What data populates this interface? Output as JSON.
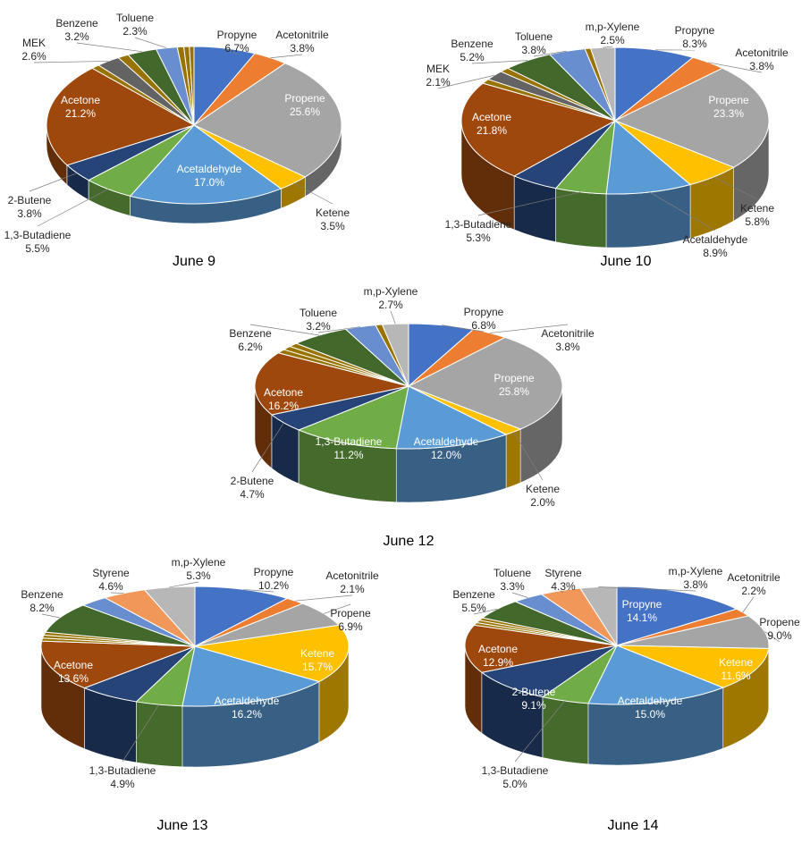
{
  "figure": {
    "colors": {
      "Propyne": "#4472C4",
      "Acetonitrile": "#ED7D31",
      "Propene": "#A5A5A5",
      "Ketene": "#FFC000",
      "Acetaldehyde": "#5B9BD5",
      "1,3-Butadiene": "#70AD47",
      "2-Butene": "#264478",
      "Acetone": "#9E480E",
      "MEK": "#636363",
      "Benzene": "#43682B",
      "Toluene": "#698ED0",
      "Styrene": "#F1975A",
      "m,p-Xylene": "#B7B7B7",
      "Other": "#997300"
    }
  },
  "chart_data": [
    {
      "type": "pie",
      "title": "June 9",
      "slices": [
        {
          "label": "Propyne",
          "value": 6.7,
          "text": "6.7%"
        },
        {
          "label": "Acetonitrile",
          "value": 3.8,
          "text": "3.8%"
        },
        {
          "label": "Propene",
          "value": 25.6,
          "text": "25.6%"
        },
        {
          "label": "Ketene",
          "value": 3.5,
          "text": "3.5%"
        },
        {
          "label": "Acetaldehyde",
          "value": 17.0,
          "text": "17.0%"
        },
        {
          "label": "1,3-Butadiene",
          "value": 5.5,
          "text": "5.5%"
        },
        {
          "label": "2-Butene",
          "value": 3.8,
          "text": "3.8%"
        },
        {
          "label": "Acetone",
          "value": 21.2,
          "text": "21.2%"
        },
        {
          "label": "Other",
          "value": 0.9,
          "text": ""
        },
        {
          "label": "MEK",
          "value": 2.6,
          "text": "2.6%"
        },
        {
          "label": "Other",
          "value": 1.2,
          "text": ""
        },
        {
          "label": "Benzene",
          "value": 3.2,
          "text": "3.2%"
        },
        {
          "label": "Toluene",
          "value": 2.3,
          "text": "2.3%"
        },
        {
          "label": "Other",
          "value": 0.7,
          "text": ""
        },
        {
          "label": "Other",
          "value": 0.6,
          "text": ""
        },
        {
          "label": "Other",
          "value": 0.5,
          "text": ""
        }
      ]
    },
    {
      "type": "pie",
      "title": "June 10",
      "slices": [
        {
          "label": "Propyne",
          "value": 8.3,
          "text": "8.3%"
        },
        {
          "label": "Acetonitrile",
          "value": 3.8,
          "text": "3.8%"
        },
        {
          "label": "Propene",
          "value": 23.3,
          "text": "23.3%"
        },
        {
          "label": "Ketene",
          "value": 5.8,
          "text": "5.8%"
        },
        {
          "label": "Acetaldehyde",
          "value": 8.9,
          "text": "8.9%"
        },
        {
          "label": "1,3-Butadiene",
          "value": 5.3,
          "text": "5.3%"
        },
        {
          "label": "2-Butene",
          "value": 5.0,
          "text": ""
        },
        {
          "label": "Acetone",
          "value": 21.8,
          "text": "21.8%"
        },
        {
          "label": "Other",
          "value": 1.0,
          "text": ""
        },
        {
          "label": "MEK",
          "value": 2.1,
          "text": "2.1%"
        },
        {
          "label": "Other",
          "value": 1.0,
          "text": ""
        },
        {
          "label": "Benzene",
          "value": 5.2,
          "text": "5.2%"
        },
        {
          "label": "Toluene",
          "value": 3.8,
          "text": "3.8%"
        },
        {
          "label": "Other",
          "value": 0.6,
          "text": ""
        },
        {
          "label": "m,p-Xylene",
          "value": 2.5,
          "text": "2.5%"
        }
      ]
    },
    {
      "type": "pie",
      "title": "June 12",
      "slices": [
        {
          "label": "Propyne",
          "value": 6.8,
          "text": "6.8%"
        },
        {
          "label": "Acetonitrile",
          "value": 3.8,
          "text": "3.8%"
        },
        {
          "label": "Propene",
          "value": 25.8,
          "text": "25.8%"
        },
        {
          "label": "Ketene",
          "value": 2.0,
          "text": "2.0%"
        },
        {
          "label": "Acetaldehyde",
          "value": 12.0,
          "text": "12.0%"
        },
        {
          "label": "1,3-Butadiene",
          "value": 11.2,
          "text": "11.2%"
        },
        {
          "label": "2-Butene",
          "value": 4.7,
          "text": "4.7%"
        },
        {
          "label": "Acetone",
          "value": 16.2,
          "text": "16.2%"
        },
        {
          "label": "Other",
          "value": 1.0,
          "text": ""
        },
        {
          "label": "Other",
          "value": 1.0,
          "text": ""
        },
        {
          "label": "Other",
          "value": 1.0,
          "text": ""
        },
        {
          "label": "Benzene",
          "value": 6.2,
          "text": "6.2%"
        },
        {
          "label": "Toluene",
          "value": 3.2,
          "text": "3.2%"
        },
        {
          "label": "Other",
          "value": 0.7,
          "text": ""
        },
        {
          "label": "m,p-Xylene",
          "value": 2.7,
          "text": "2.7%"
        }
      ]
    },
    {
      "type": "pie",
      "title": "June 13",
      "slices": [
        {
          "label": "Propyne",
          "value": 10.2,
          "text": "10.2%"
        },
        {
          "label": "Acetonitrile",
          "value": 2.1,
          "text": "2.1%"
        },
        {
          "label": "Propene",
          "value": 6.9,
          "text": "6.9%"
        },
        {
          "label": "Ketene",
          "value": 15.7,
          "text": "15.7%"
        },
        {
          "label": "Acetaldehyde",
          "value": 16.2,
          "text": "16.2%"
        },
        {
          "label": "1,3-Butadiene",
          "value": 4.9,
          "text": "4.9%"
        },
        {
          "label": "2-Butene",
          "value": 6.5,
          "text": ""
        },
        {
          "label": "Acetone",
          "value": 13.6,
          "text": "13.6%"
        },
        {
          "label": "Other",
          "value": 0.8,
          "text": ""
        },
        {
          "label": "Other",
          "value": 0.8,
          "text": ""
        },
        {
          "label": "Other",
          "value": 0.8,
          "text": ""
        },
        {
          "label": "Benzene",
          "value": 8.2,
          "text": "8.2%"
        },
        {
          "label": "Toluene",
          "value": 3.0,
          "text": ""
        },
        {
          "label": "Styrene",
          "value": 4.6,
          "text": "4.6%"
        },
        {
          "label": "m,p-Xylene",
          "value": 5.3,
          "text": "5.3%"
        }
      ]
    },
    {
      "type": "pie",
      "title": "June 14",
      "slices": [
        {
          "label": "Propyne",
          "value": 14.1,
          "text": "14.1%"
        },
        {
          "label": "Acetonitrile",
          "value": 2.2,
          "text": "2.2%"
        },
        {
          "label": "Propene",
          "value": 9.0,
          "text": "9.0%"
        },
        {
          "label": "Ketene",
          "value": 11.6,
          "text": "11.6%"
        },
        {
          "label": "Acetaldehyde",
          "value": 15.0,
          "text": "15.0%"
        },
        {
          "label": "1,3-Butadiene",
          "value": 5.0,
          "text": "5.0%"
        },
        {
          "label": "2-Butene",
          "value": 9.1,
          "text": "9.1%"
        },
        {
          "label": "Acetone",
          "value": 12.9,
          "text": "12.9%"
        },
        {
          "label": "Other",
          "value": 0.7,
          "text": ""
        },
        {
          "label": "Other",
          "value": 0.7,
          "text": ""
        },
        {
          "label": "Other",
          "value": 0.7,
          "text": ""
        },
        {
          "label": "Benzene",
          "value": 5.5,
          "text": "5.5%"
        },
        {
          "label": "Toluene",
          "value": 3.3,
          "text": "3.3%"
        },
        {
          "label": "Styrene",
          "value": 4.3,
          "text": "4.3%"
        },
        {
          "label": "m,p-Xylene",
          "value": 3.8,
          "text": "3.8%"
        }
      ]
    }
  ]
}
